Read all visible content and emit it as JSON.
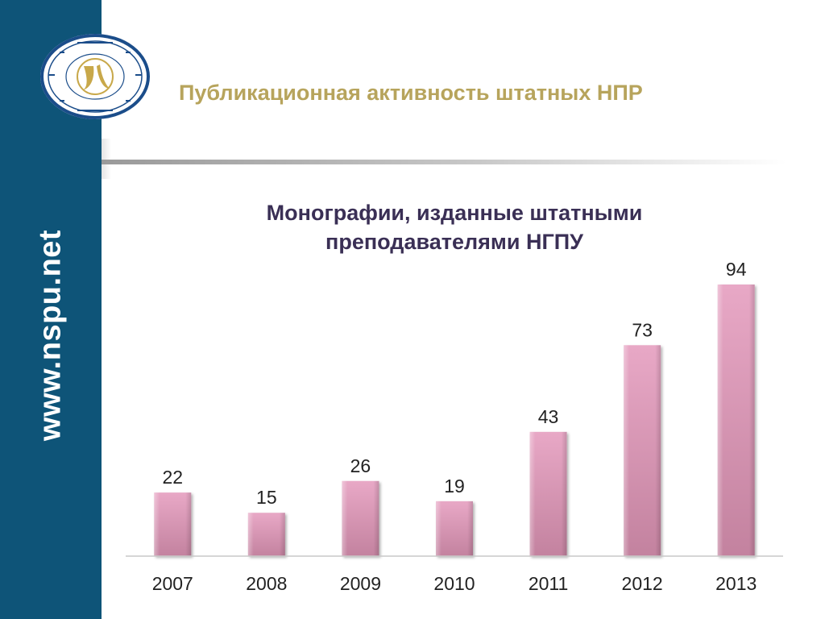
{
  "slide": {
    "title": "Публикационная активность штатных НПР",
    "sidebar_text": "www.nspu.net",
    "chart_title_line1": "Монографии, изданные штатными",
    "chart_title_line2": "преподавателями НГПУ"
  },
  "colors": {
    "sidebar": "#0e5478",
    "title": "#b7a45c",
    "chart_title": "#3a2f55",
    "bar_fill": "#e6a3c3",
    "bar_dark": "#b97896"
  },
  "chart_data": {
    "type": "bar",
    "title": "Монографии, изданные штатными преподавателями НГПУ",
    "categories": [
      "2007",
      "2008",
      "2009",
      "2010",
      "2011",
      "2012",
      "2013"
    ],
    "values": [
      22,
      15,
      26,
      19,
      43,
      73,
      94
    ],
    "ylim": [
      0,
      94
    ],
    "grid": false,
    "legend": "none",
    "data_labels": true
  }
}
